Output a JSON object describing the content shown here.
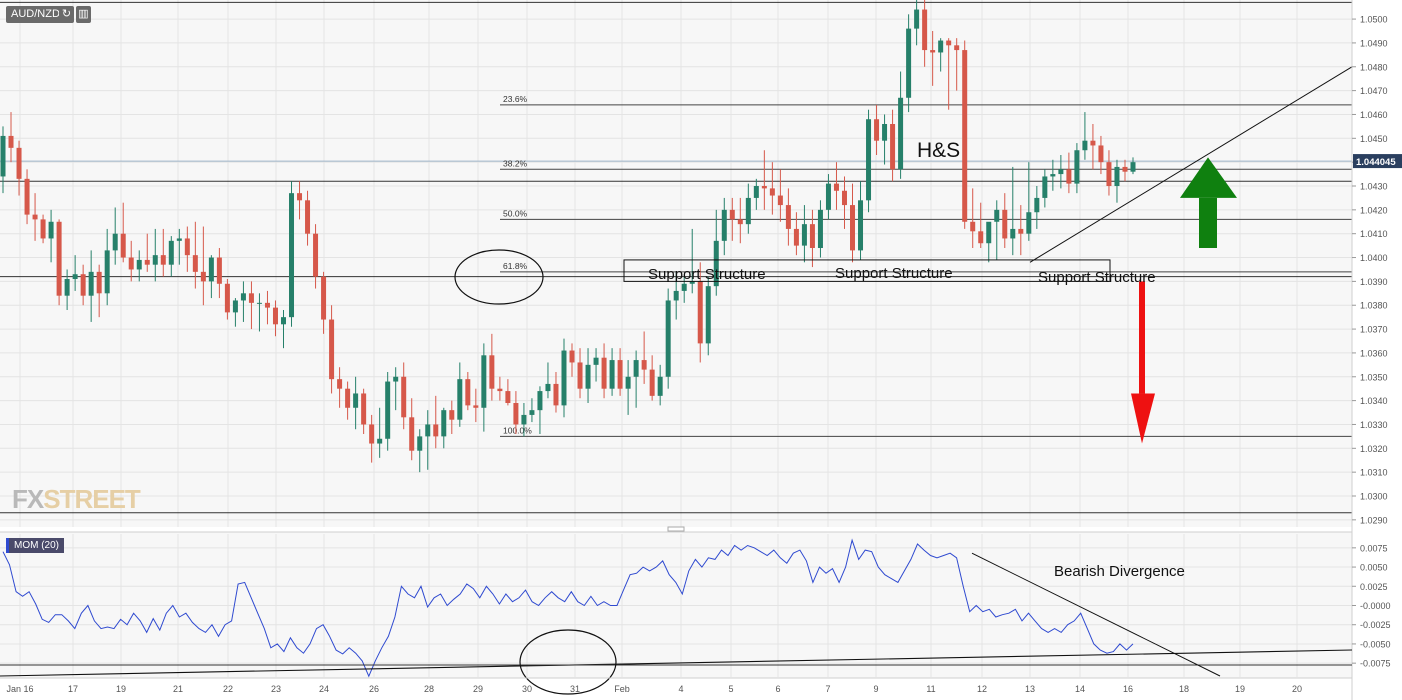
{
  "header": {
    "symbol": "AUD/NZD"
  },
  "toolbar": {
    "reload_icon": "refresh-icon",
    "settings_icon": "bar-chart-icon"
  },
  "indicator": {
    "label": "MOM (20)"
  },
  "watermark": {
    "fx": "FX",
    "street": "STREET"
  },
  "colors": {
    "up": "#26806a",
    "down": "#d6584a",
    "momentum": "#2f4ad0",
    "bg": "#f7f7f7",
    "grid": "#e4e4e4",
    "arrow_up": "#0f800f",
    "arrow_down": "#ee1111"
  },
  "chart_data": [
    {
      "type": "candlestick",
      "title": "AUD/NZD",
      "x_tick_labels": [
        "Jan 16",
        "17",
        "19",
        "21",
        "22",
        "23",
        "24",
        "26",
        "28",
        "29",
        "30",
        "31",
        "Feb",
        "4",
        "5",
        "6",
        "7",
        "9",
        "11",
        "12",
        "13",
        "14",
        "16",
        "18",
        "19",
        "20"
      ],
      "y_tick_labels": [
        "1.0500",
        "1.0490",
        "1.0480",
        "1.0470",
        "1.0460",
        "1.0450",
        "1.0440",
        "1.0430",
        "1.0420",
        "1.0410",
        "1.0400",
        "1.0390",
        "1.0380",
        "1.0370",
        "1.0360",
        "1.0350",
        "1.0340",
        "1.0330",
        "1.0320",
        "1.0310",
        "1.0300",
        "1.0290"
      ],
      "ylim": [
        1.0287,
        1.0508
      ],
      "current_price": "1.044045",
      "fibonacci": [
        {
          "label": "23.6%",
          "value": 1.0464
        },
        {
          "label": "38.2%",
          "value": 1.0437
        },
        {
          "label": "50.0%",
          "value": 1.0416
        },
        {
          "label": "61.8%",
          "value": 1.0394
        },
        {
          "label": "100.0%",
          "value": 1.0325
        }
      ],
      "horizontal_lines": [
        1.0507,
        1.0432,
        1.0392,
        1.0293
      ],
      "annotations": {
        "pattern": "H&S",
        "support_label": "Support Structure"
      },
      "candles_ohlc": [
        [
          1.0434,
          1.0455,
          1.0427,
          1.0451
        ],
        [
          1.0451,
          1.0461,
          1.044,
          1.0446
        ],
        [
          1.0446,
          1.0449,
          1.0426,
          1.0433
        ],
        [
          1.0433,
          1.0437,
          1.0414,
          1.0418
        ],
        [
          1.0418,
          1.0427,
          1.0407,
          1.0416
        ],
        [
          1.0416,
          1.0418,
          1.0406,
          1.0408
        ],
        [
          1.0408,
          1.042,
          1.0398,
          1.0415
        ],
        [
          1.0415,
          1.0416,
          1.038,
          1.0384
        ],
        [
          1.0384,
          1.0395,
          1.0378,
          1.0391
        ],
        [
          1.0391,
          1.0401,
          1.0386,
          1.0393
        ],
        [
          1.0393,
          1.0397,
          1.038,
          1.0384
        ],
        [
          1.0384,
          1.0403,
          1.0373,
          1.0394
        ],
        [
          1.0394,
          1.0397,
          1.0375,
          1.0385
        ],
        [
          1.0385,
          1.0412,
          1.038,
          1.0403
        ],
        [
          1.0403,
          1.0421,
          1.0397,
          1.041
        ],
        [
          1.041,
          1.0423,
          1.0398,
          1.04
        ],
        [
          1.04,
          1.0407,
          1.039,
          1.0395
        ],
        [
          1.0395,
          1.0403,
          1.039,
          1.0399
        ],
        [
          1.0399,
          1.041,
          1.0394,
          1.0397
        ],
        [
          1.0397,
          1.0412,
          1.039,
          1.0401
        ],
        [
          1.0401,
          1.0412,
          1.0392,
          1.0397
        ],
        [
          1.0397,
          1.0409,
          1.0392,
          1.0407
        ],
        [
          1.0407,
          1.0412,
          1.0397,
          1.0408
        ],
        [
          1.0408,
          1.0413,
          1.0394,
          1.0401
        ],
        [
          1.0401,
          1.0415,
          1.0387,
          1.0394
        ],
        [
          1.0394,
          1.0413,
          1.038,
          1.039
        ],
        [
          1.039,
          1.0401,
          1.0383,
          1.04
        ],
        [
          1.04,
          1.0404,
          1.0383,
          1.0389
        ],
        [
          1.0389,
          1.0391,
          1.0374,
          1.0377
        ],
        [
          1.0377,
          1.0383,
          1.0371,
          1.0382
        ],
        [
          1.0382,
          1.039,
          1.0373,
          1.0385
        ],
        [
          1.0385,
          1.039,
          1.037,
          1.0381
        ],
        [
          1.0381,
          1.0385,
          1.0369,
          1.0381
        ],
        [
          1.0381,
          1.0386,
          1.0372,
          1.0379
        ],
        [
          1.0379,
          1.0382,
          1.0367,
          1.0372
        ],
        [
          1.0372,
          1.0378,
          1.0362,
          1.0375
        ],
        [
          1.0375,
          1.0432,
          1.0371,
          1.0427
        ],
        [
          1.0427,
          1.0432,
          1.0416,
          1.0424
        ],
        [
          1.0424,
          1.0428,
          1.0405,
          1.041
        ],
        [
          1.041,
          1.0414,
          1.0387,
          1.0392
        ],
        [
          1.0392,
          1.0394,
          1.0368,
          1.0374
        ],
        [
          1.0374,
          1.038,
          1.0343,
          1.0349
        ],
        [
          1.0349,
          1.0354,
          1.0337,
          1.0345
        ],
        [
          1.0345,
          1.0348,
          1.0332,
          1.0337
        ],
        [
          1.0337,
          1.035,
          1.0328,
          1.0343
        ],
        [
          1.0343,
          1.0345,
          1.0326,
          1.033
        ],
        [
          1.033,
          1.0334,
          1.0314,
          1.0322
        ],
        [
          1.0322,
          1.0337,
          1.0316,
          1.0324
        ],
        [
          1.0324,
          1.0352,
          1.0319,
          1.0348
        ],
        [
          1.0348,
          1.0354,
          1.0336,
          1.035
        ],
        [
          1.035,
          1.0356,
          1.0328,
          1.0333
        ],
        [
          1.0333,
          1.0341,
          1.0315,
          1.0319
        ],
        [
          1.0319,
          1.0328,
          1.031,
          1.0325
        ],
        [
          1.0325,
          1.0336,
          1.0311,
          1.033
        ],
        [
          1.033,
          1.0342,
          1.032,
          1.0325
        ],
        [
          1.0325,
          1.0337,
          1.032,
          1.0336
        ],
        [
          1.0336,
          1.034,
          1.0326,
          1.0332
        ],
        [
          1.0332,
          1.0356,
          1.0329,
          1.0349
        ],
        [
          1.0349,
          1.0352,
          1.0336,
          1.0338
        ],
        [
          1.0338,
          1.0345,
          1.0331,
          1.0337
        ],
        [
          1.0337,
          1.0364,
          1.0327,
          1.0359
        ],
        [
          1.0359,
          1.0368,
          1.034,
          1.0345
        ],
        [
          1.0345,
          1.035,
          1.034,
          1.0344
        ],
        [
          1.0344,
          1.0349,
          1.0338,
          1.0339
        ],
        [
          1.0339,
          1.0344,
          1.0326,
          1.033
        ],
        [
          1.033,
          1.0339,
          1.0325,
          1.0334
        ],
        [
          1.0334,
          1.0341,
          1.0331,
          1.0336
        ],
        [
          1.0336,
          1.0346,
          1.0326,
          1.0344
        ],
        [
          1.0344,
          1.0356,
          1.0341,
          1.0347
        ],
        [
          1.0347,
          1.0352,
          1.0335,
          1.0338
        ],
        [
          1.0338,
          1.0366,
          1.0333,
          1.0361
        ],
        [
          1.0361,
          1.0364,
          1.035,
          1.0356
        ],
        [
          1.0356,
          1.0362,
          1.0341,
          1.0345
        ],
        [
          1.0345,
          1.0362,
          1.0339,
          1.0355
        ],
        [
          1.0355,
          1.0362,
          1.0348,
          1.0358
        ],
        [
          1.0358,
          1.0364,
          1.0341,
          1.0345
        ],
        [
          1.0345,
          1.0362,
          1.0342,
          1.0357
        ],
        [
          1.0357,
          1.0362,
          1.0342,
          1.0345
        ],
        [
          1.0345,
          1.0357,
          1.0334,
          1.035
        ],
        [
          1.035,
          1.0361,
          1.0337,
          1.0357
        ],
        [
          1.0357,
          1.0369,
          1.0347,
          1.0353
        ],
        [
          1.0353,
          1.0359,
          1.034,
          1.0342
        ],
        [
          1.0342,
          1.0355,
          1.0338,
          1.035
        ],
        [
          1.035,
          1.0387,
          1.0345,
          1.0382
        ],
        [
          1.0382,
          1.0394,
          1.0374,
          1.0386
        ],
        [
          1.0386,
          1.0392,
          1.0381,
          1.0389
        ],
        [
          1.0389,
          1.0412,
          1.0385,
          1.039
        ],
        [
          1.039,
          1.0398,
          1.0356,
          1.0364
        ],
        [
          1.0364,
          1.0392,
          1.0359,
          1.0388
        ],
        [
          1.0388,
          1.042,
          1.0384,
          1.0407
        ],
        [
          1.0407,
          1.0425,
          1.0401,
          1.042
        ],
        [
          1.042,
          1.0425,
          1.0407,
          1.0416
        ],
        [
          1.0416,
          1.0425,
          1.0406,
          1.0414
        ],
        [
          1.0414,
          1.0431,
          1.041,
          1.0425
        ],
        [
          1.0425,
          1.0433,
          1.042,
          1.043
        ],
        [
          1.043,
          1.0445,
          1.042,
          1.0429
        ],
        [
          1.0429,
          1.044,
          1.0418,
          1.0426
        ],
        [
          1.0426,
          1.0437,
          1.0415,
          1.0422
        ],
        [
          1.0422,
          1.0429,
          1.0405,
          1.0412
        ],
        [
          1.0412,
          1.0419,
          1.0401,
          1.0405
        ],
        [
          1.0405,
          1.0422,
          1.0398,
          1.0414
        ],
        [
          1.0414,
          1.042,
          1.0396,
          1.0404
        ],
        [
          1.0404,
          1.0424,
          1.04,
          1.042
        ],
        [
          1.042,
          1.0435,
          1.0416,
          1.0431
        ],
        [
          1.0431,
          1.044,
          1.042,
          1.0428
        ],
        [
          1.0428,
          1.0434,
          1.0412,
          1.0422
        ],
        [
          1.0422,
          1.0431,
          1.0398,
          1.0403
        ],
        [
          1.0403,
          1.0432,
          1.0399,
          1.0424
        ],
        [
          1.0424,
          1.0462,
          1.0419,
          1.0458
        ],
        [
          1.0458,
          1.0464,
          1.0443,
          1.0449
        ],
        [
          1.0449,
          1.046,
          1.0439,
          1.0456
        ],
        [
          1.0456,
          1.0462,
          1.0432,
          1.0437
        ],
        [
          1.0437,
          1.0478,
          1.0433,
          1.0467
        ],
        [
          1.0467,
          1.0502,
          1.0461,
          1.0496
        ],
        [
          1.0496,
          1.0508,
          1.0489,
          1.0504
        ],
        [
          1.0504,
          1.0508,
          1.048,
          1.0487
        ],
        [
          1.0487,
          1.0495,
          1.0472,
          1.0486
        ],
        [
          1.0486,
          1.0492,
          1.0478,
          1.0491
        ],
        [
          1.0491,
          1.0492,
          1.0462,
          1.0489
        ],
        [
          1.0489,
          1.0492,
          1.047,
          1.0487
        ],
        [
          1.0487,
          1.0491,
          1.0412,
          1.0415
        ],
        [
          1.0415,
          1.0429,
          1.0404,
          1.0411
        ],
        [
          1.0411,
          1.0423,
          1.0404,
          1.0406
        ],
        [
          1.0406,
          1.0411,
          1.0398,
          1.0415
        ],
        [
          1.0415,
          1.0424,
          1.0399,
          1.042
        ],
        [
          1.042,
          1.0427,
          1.0404,
          1.0408
        ],
        [
          1.0408,
          1.0438,
          1.0401,
          1.0412
        ],
        [
          1.0412,
          1.0422,
          1.0401,
          1.041
        ],
        [
          1.041,
          1.044,
          1.0407,
          1.0419
        ],
        [
          1.0419,
          1.043,
          1.0412,
          1.0425
        ],
        [
          1.0425,
          1.0437,
          1.0421,
          1.0434
        ],
        [
          1.0434,
          1.0441,
          1.0428,
          1.0435
        ],
        [
          1.0435,
          1.0443,
          1.0429,
          1.0437
        ],
        [
          1.0437,
          1.0444,
          1.0427,
          1.0431
        ],
        [
          1.0431,
          1.0448,
          1.0427,
          1.0445
        ],
        [
          1.0445,
          1.0461,
          1.0441,
          1.0449
        ],
        [
          1.0449,
          1.0456,
          1.0437,
          1.0447
        ],
        [
          1.0447,
          1.0451,
          1.0435,
          1.044
        ],
        [
          1.044,
          1.0445,
          1.0426,
          1.043
        ],
        [
          1.043,
          1.0441,
          1.0423,
          1.0438
        ],
        [
          1.0438,
          1.0441,
          1.0432,
          1.0436
        ],
        [
          1.0436,
          1.0442,
          1.0435,
          1.044
        ]
      ]
    },
    {
      "type": "line",
      "title": "MOM (20)",
      "y_tick_labels": [
        "0.0075",
        "0.0050",
        "0.0025",
        "-0.0000",
        "-0.0025",
        "-0.0050",
        "-0.0075"
      ],
      "ylim": [
        -0.0093,
        0.0093
      ],
      "series": [
        {
          "name": "MOM (20)",
          "values": [
            0.007,
            0.0053,
            0.0018,
            0.0012,
            0.0018,
            0.0002,
            -0.0018,
            -0.0022,
            -0.0012,
            -0.0012,
            -0.002,
            -0.003,
            -0.001,
            0.0,
            -0.002,
            -0.003,
            -0.0028,
            -0.003,
            -0.0018,
            -0.0025,
            -0.001,
            -0.002,
            -0.0035,
            -0.0017,
            -0.0032,
            -0.001,
            0.0,
            -0.0015,
            -0.001,
            -0.0022,
            -0.003,
            -0.0035,
            -0.0025,
            -0.004,
            -0.0025,
            -0.002,
            0.0028,
            0.003,
            0.001,
            -0.001,
            -0.003,
            -0.0055,
            -0.005,
            -0.006,
            -0.0042,
            -0.0055,
            -0.0062,
            -0.005,
            -0.003,
            -0.0025,
            -0.004,
            -0.0058,
            -0.0063,
            -0.0055,
            -0.0062,
            -0.0072,
            -0.0092,
            -0.0072,
            -0.0055,
            -0.004,
            -0.0015,
            0.0025,
            0.0015,
            0.001,
            0.0025,
            -0.0002,
            0.001,
            0.0015,
            0.0,
            0.0008,
            0.0015,
            0.0028,
            0.0022,
            0.001,
            0.0025,
            0.0015,
            0.0002,
            0.0015,
            0.0005,
            0.001,
            0.002,
            0.0005,
            0.0,
            0.001,
            0.0018,
            0.001,
            0.0005,
            0.0018,
            0.0005,
            0.0,
            0.0012,
            0.0,
            0.0005,
            0.0,
            0.0,
            0.002,
            0.004,
            0.0042,
            0.005,
            0.0045,
            0.005,
            0.0058,
            0.004,
            0.003,
            0.0015,
            0.0045,
            0.006,
            0.005,
            0.0062,
            0.006,
            0.0072,
            0.0065,
            0.0078,
            0.0072,
            0.0078,
            0.0075,
            0.007,
            0.0065,
            0.0072,
            0.0062,
            0.0055,
            0.0068,
            0.0072,
            0.0058,
            0.003,
            0.005,
            0.0042,
            0.0048,
            0.003,
            0.005,
            0.0085,
            0.006,
            0.0072,
            0.007,
            0.005,
            0.004,
            0.0035,
            0.003,
            0.0045,
            0.006,
            0.008,
            0.0072,
            0.0065,
            0.0062,
            0.0065,
            0.0068,
            0.0062,
            0.0025,
            -0.0008,
            0.0,
            -0.0008,
            -0.0005,
            -0.0015,
            -0.0012,
            -0.001,
            -0.0005,
            -0.002,
            -0.001,
            -0.002,
            -0.003,
            -0.0035,
            -0.003,
            -0.0035,
            -0.0025,
            -0.002,
            -0.001,
            -0.003,
            -0.005,
            -0.0058,
            -0.0062,
            -0.006,
            -0.005,
            -0.0058,
            -0.005
          ]
        }
      ],
      "annotations": {
        "divergence": "Bearish Divergence"
      }
    }
  ]
}
